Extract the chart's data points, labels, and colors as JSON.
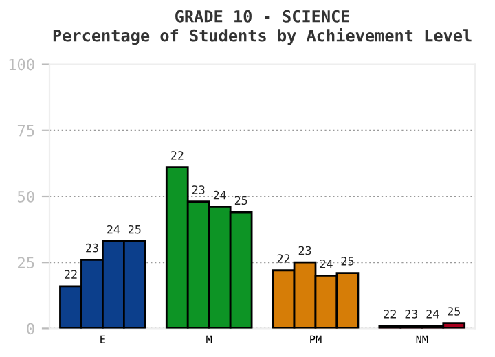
{
  "chart_data": {
    "type": "bar",
    "title": "GRADE 10 - SCIENCE\nPercentage of Students by Achievement Level",
    "categories": [
      "E",
      "M",
      "PM",
      "NM"
    ],
    "series": [
      {
        "name": "22",
        "colors": [
          "#0c3f8c",
          "#0d9425",
          "#d67d07",
          "#a8001e"
        ],
        "values": [
          16,
          61,
          22,
          1
        ]
      },
      {
        "name": "23",
        "colors": [
          "#0c3f8c",
          "#0d9425",
          "#d67d07",
          "#a8001e"
        ],
        "values": [
          26,
          48,
          25,
          1
        ]
      },
      {
        "name": "24",
        "colors": [
          "#0c3f8c",
          "#0d9425",
          "#d67d07",
          "#a8001e"
        ],
        "values": [
          33,
          46,
          20,
          1
        ]
      },
      {
        "name": "25",
        "colors": [
          "#0c3f8c",
          "#0d9425",
          "#d67d07",
          "#a8001e"
        ],
        "values": [
          33,
          44,
          21,
          2
        ]
      }
    ],
    "ylim": [
      0,
      100
    ],
    "yticks": [
      0,
      25,
      50,
      75,
      100
    ],
    "grid": "y"
  }
}
